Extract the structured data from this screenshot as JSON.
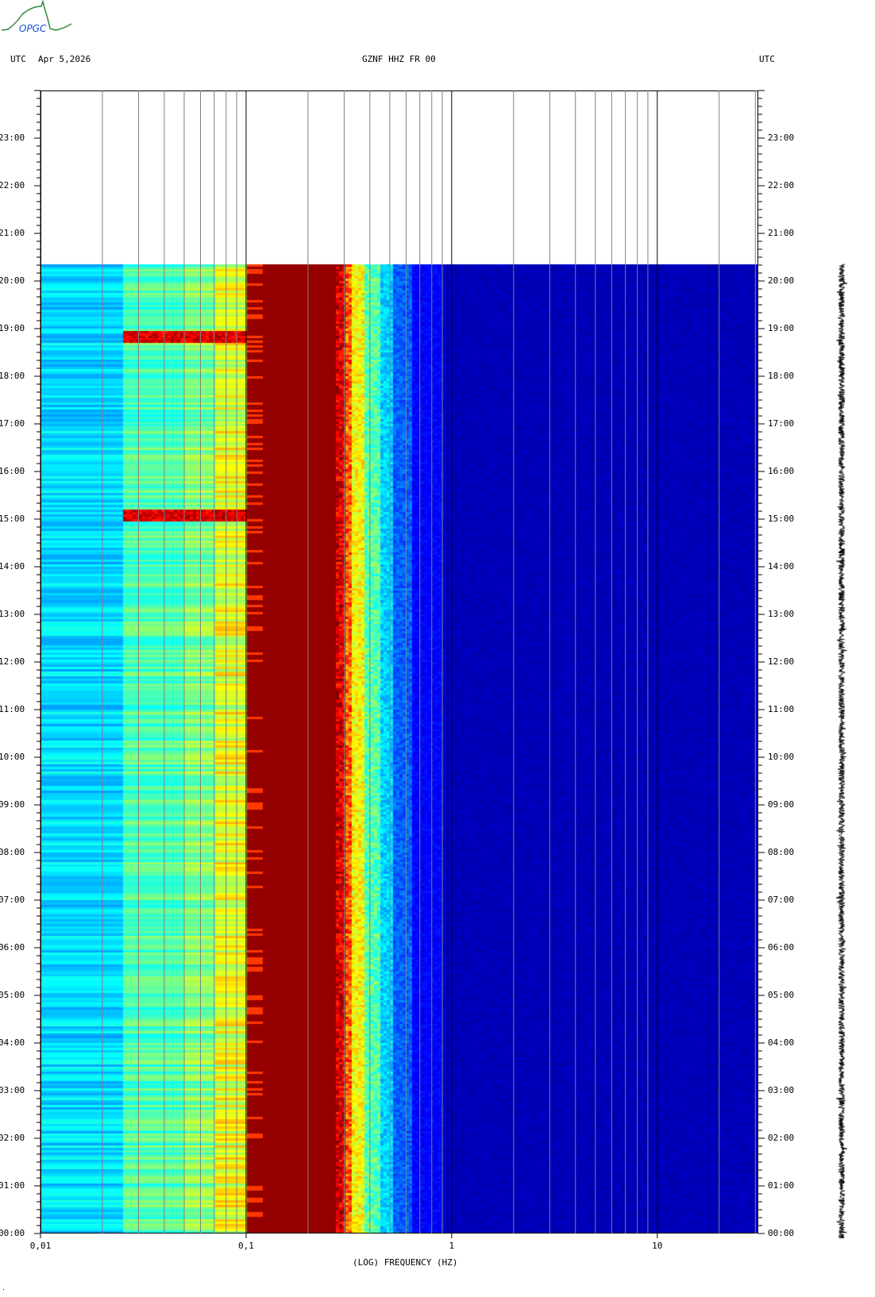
{
  "header": {
    "left_tz": "UTC",
    "date": "Apr 5,2026",
    "station": "GZNF HHZ FR 00",
    "right_tz": "UTC"
  },
  "logo": {
    "text": "OPGC"
  },
  "footer_mark": "·",
  "chart_data": {
    "type": "heatmap",
    "title": "GZNF HHZ FR 00",
    "xlabel": "(LOG) FREQUENCY (HZ)",
    "ylabel": "",
    "x_scale": "log",
    "xlim": [
      0.01,
      31
    ],
    "x_ticks": [
      "0,01",
      "0,1",
      "1",
      "10"
    ],
    "ylim_hours": [
      0,
      24
    ],
    "y_ticks": [
      "00:00",
      "01:00",
      "02:00",
      "03:00",
      "04:00",
      "05:00",
      "06:00",
      "07:00",
      "08:00",
      "09:00",
      "10:00",
      "11:00",
      "12:00",
      "13:00",
      "14:00",
      "15:00",
      "16:00",
      "17:00",
      "18:00",
      "19:00",
      "20:00",
      "21:00",
      "22:00",
      "23:00"
    ],
    "data_end": "20:21",
    "colormap": "jet",
    "bands": [
      {
        "freq_range": [
          0.01,
          0.025
        ],
        "level": "cyan-blue"
      },
      {
        "freq_range": [
          0.025,
          0.1
        ],
        "level": "green-yellow"
      },
      {
        "freq_range": [
          0.1,
          0.28
        ],
        "level": "dark red (max)"
      },
      {
        "freq_range": [
          0.28,
          0.35
        ],
        "level": "red-yellow"
      },
      {
        "freq_range": [
          0.35,
          0.6
        ],
        "level": "cyan-blue"
      },
      {
        "freq_range": [
          0.6,
          31
        ],
        "level": "dark blue (min)"
      }
    ],
    "events": [
      {
        "time": "18:52",
        "freq_range": [
          0.025,
          0.1
        ]
      },
      {
        "time": "15:05",
        "freq_range": [
          0.025,
          0.1
        ]
      }
    ],
    "grid": true
  }
}
